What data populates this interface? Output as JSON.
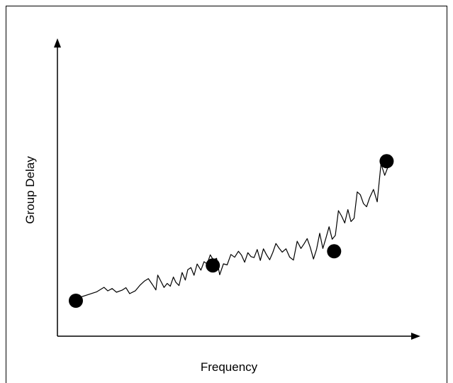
{
  "chart_data": {
    "type": "line",
    "title": "",
    "xlabel": "Frequency",
    "ylabel": "Group Delay",
    "xlim": [
      0,
      100
    ],
    "ylim": [
      0,
      100
    ],
    "ticks": "none",
    "grid": false,
    "legend": "none",
    "series": [
      {
        "color": "#000000",
        "x": [
          0.0,
          4.0,
          6.6,
          9.0,
          10.2,
          11.6,
          13.0,
          14.8,
          16.0,
          17.2,
          19.0,
          20.6,
          22.0,
          23.2,
          24.4,
          25.6,
          26.2,
          27.2,
          28.2,
          29.2,
          30.2,
          31.2,
          32.0,
          33.0,
          34.0,
          35.0,
          35.8,
          36.8,
          37.8,
          38.8,
          40.0,
          41.0,
          42.0,
          43.0,
          44.0,
          45.0,
          46.0,
          47.2,
          48.4,
          49.6,
          50.8,
          52.0,
          53.0,
          54.0,
          55.0,
          56.0,
          57.0,
          58.0,
          59.0,
          60.0,
          61.0,
          62.0,
          63.0,
          64.0,
          65.0,
          66.0,
          67.2,
          68.4,
          69.6,
          70.8,
          72.0,
          73.0,
          74.0,
          75.0,
          76.0,
          77.0,
          78.0,
          79.0,
          80.0,
          81.0,
          82.0,
          83.0,
          84.0,
          85.0,
          86.0,
          87.0,
          88.0,
          89.0,
          90.0,
          91.0,
          92.0,
          93.0,
          94.0,
          95.2,
          96.4,
          97.6,
          98.8,
          100.0
        ],
        "y": [
          1.2,
          3.5,
          5.0,
          7.6,
          5.6,
          6.9,
          4.8,
          6.0,
          7.4,
          4.0,
          5.6,
          8.9,
          11.2,
          12.5,
          9.4,
          6.1,
          14.5,
          11.0,
          7.5,
          9.8,
          8.2,
          13.4,
          10.4,
          8.6,
          16.0,
          11.7,
          17.6,
          18.8,
          14.4,
          20.8,
          17.3,
          22.1,
          20.8,
          26.0,
          23.0,
          24.0,
          14.7,
          20.9,
          20.3,
          26.2,
          24.6,
          28.0,
          25.8,
          21.8,
          27.2,
          25.0,
          24.4,
          29.0,
          22.8,
          29.4,
          26.0,
          23.2,
          27.3,
          32.4,
          29.7,
          27.5,
          29.4,
          24.7,
          23.0,
          33.7,
          29.6,
          32.2,
          35.2,
          30.0,
          23.6,
          29.2,
          38.2,
          29.6,
          35.5,
          41.9,
          34.8,
          37.0,
          51.0,
          48.0,
          44.0,
          51.6,
          44.8,
          46.7,
          61.6,
          60.0,
          55.0,
          53.2,
          58.4,
          63.0,
          56.0,
          77.5,
          71.0,
          76.5
        ]
      }
    ],
    "markers": [
      {
        "x": 0.0,
        "y": 0.0
      },
      {
        "x": 43.8,
        "y": 20.0
      },
      {
        "x": 82.6,
        "y": 28.0
      },
      {
        "x": 99.4,
        "y": 79.0
      }
    ]
  }
}
